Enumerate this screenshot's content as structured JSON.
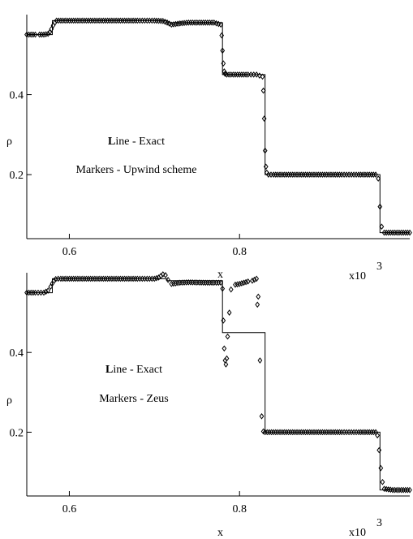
{
  "chart_data": [
    {
      "type": "line",
      "panel": "top",
      "annotations": {
        "line_label_initial": "L",
        "line_label_rest": "ine - Exact",
        "markers_label": "Markers - Upwind scheme"
      },
      "xlabel": "x",
      "ylabel": "ρ",
      "x_scale_label": "x10",
      "x_scale_exponent": "3",
      "xlim": [
        0.55,
        1.0
      ],
      "ylim": [
        0.04,
        0.6
      ],
      "x_ticks": [
        0.6,
        0.8
      ],
      "x_tick_labels": [
        "0.6",
        "0.8"
      ],
      "y_ticks": [
        0.2,
        0.4
      ],
      "y_tick_labels": [
        "0.2",
        "0.4"
      ],
      "grid": false,
      "series": [
        {
          "style": "line",
          "x": [
            0.55,
            0.58,
            0.58,
            0.715,
            0.715,
            0.78,
            0.78,
            0.83,
            0.83,
            0.965,
            0.965,
            1.0
          ],
          "y": [
            0.55,
            0.55,
            0.585,
            0.585,
            0.58,
            0.58,
            0.45,
            0.45,
            0.2,
            0.2,
            0.055,
            0.055
          ]
        },
        {
          "style": "markers",
          "x": [
            0.55,
            0.555,
            0.56,
            0.565,
            0.57,
            0.575,
            0.577,
            0.579,
            0.581,
            0.583,
            0.585,
            0.59,
            0.6,
            0.62,
            0.64,
            0.66,
            0.68,
            0.7,
            0.71,
            0.715,
            0.72,
            0.73,
            0.74,
            0.76,
            0.77,
            0.778,
            0.779,
            0.78,
            0.781,
            0.782,
            0.783,
            0.785,
            0.79,
            0.8,
            0.81,
            0.82,
            0.827,
            0.828,
            0.829,
            0.83,
            0.831,
            0.832,
            0.834,
            0.84,
            0.86,
            0.88,
            0.9,
            0.92,
            0.94,
            0.96,
            0.963,
            0.965,
            0.967,
            0.97,
            0.98,
            0.99,
            1.0
          ],
          "y": [
            0.55,
            0.55,
            0.55,
            0.55,
            0.55,
            0.552,
            0.556,
            0.564,
            0.573,
            0.58,
            0.585,
            0.585,
            0.585,
            0.585,
            0.585,
            0.585,
            0.585,
            0.585,
            0.584,
            0.58,
            0.575,
            0.578,
            0.58,
            0.58,
            0.58,
            0.575,
            0.548,
            0.51,
            0.478,
            0.458,
            0.452,
            0.45,
            0.45,
            0.45,
            0.45,
            0.45,
            0.445,
            0.41,
            0.34,
            0.26,
            0.22,
            0.205,
            0.2,
            0.2,
            0.2,
            0.2,
            0.2,
            0.2,
            0.2,
            0.2,
            0.19,
            0.12,
            0.07,
            0.055,
            0.055,
            0.055,
            0.055
          ]
        }
      ]
    },
    {
      "type": "line",
      "panel": "bottom",
      "annotations": {
        "line_label_initial": "L",
        "line_label_rest": "ine - Exact",
        "markers_label": "Markers - Zeus"
      },
      "xlabel": "x",
      "ylabel": "ρ",
      "x_scale_label": "x10",
      "x_scale_exponent": "3",
      "xlim": [
        0.55,
        1.0
      ],
      "ylim": [
        0.04,
        0.6
      ],
      "x_ticks": [
        0.6,
        0.8
      ],
      "x_tick_labels": [
        "0.6",
        "0.8"
      ],
      "y_ticks": [
        0.2,
        0.4
      ],
      "y_tick_labels": [
        "0.2",
        "0.4"
      ],
      "grid": false,
      "series": [
        {
          "style": "line",
          "x": [
            0.55,
            0.58,
            0.58,
            0.715,
            0.715,
            0.78,
            0.78,
            0.83,
            0.83,
            0.965,
            0.965,
            1.0
          ],
          "y": [
            0.55,
            0.55,
            0.585,
            0.585,
            0.58,
            0.58,
            0.45,
            0.45,
            0.2,
            0.2,
            0.055,
            0.055
          ]
        },
        {
          "style": "markers",
          "x": [
            0.55,
            0.56,
            0.57,
            0.575,
            0.578,
            0.58,
            0.582,
            0.584,
            0.587,
            0.59,
            0.6,
            0.62,
            0.64,
            0.66,
            0.68,
            0.7,
            0.705,
            0.71,
            0.713,
            0.716,
            0.72,
            0.73,
            0.74,
            0.76,
            0.77,
            0.778,
            0.78,
            0.781,
            0.782,
            0.783,
            0.784,
            0.785,
            0.786,
            0.788,
            0.79,
            0.795,
            0.8,
            0.805,
            0.81,
            0.815,
            0.82,
            0.821,
            0.822,
            0.824,
            0.826,
            0.828,
            0.83,
            0.84,
            0.86,
            0.88,
            0.9,
            0.92,
            0.94,
            0.96,
            0.962,
            0.964,
            0.966,
            0.968,
            0.97,
            0.98,
            0.99,
            1.0
          ],
          "y": [
            0.55,
            0.55,
            0.55,
            0.555,
            0.565,
            0.573,
            0.58,
            0.584,
            0.585,
            0.585,
            0.585,
            0.585,
            0.585,
            0.585,
            0.585,
            0.585,
            0.588,
            0.596,
            0.594,
            0.582,
            0.572,
            0.575,
            0.576,
            0.575,
            0.575,
            0.575,
            0.56,
            0.48,
            0.41,
            0.38,
            0.37,
            0.385,
            0.44,
            0.5,
            0.558,
            0.57,
            0.572,
            0.575,
            0.578,
            0.58,
            0.585,
            0.52,
            0.54,
            0.38,
            0.24,
            0.202,
            0.2,
            0.2,
            0.2,
            0.2,
            0.2,
            0.2,
            0.2,
            0.2,
            0.192,
            0.155,
            0.11,
            0.075,
            0.058,
            0.055,
            0.055,
            0.055
          ]
        }
      ]
    }
  ]
}
